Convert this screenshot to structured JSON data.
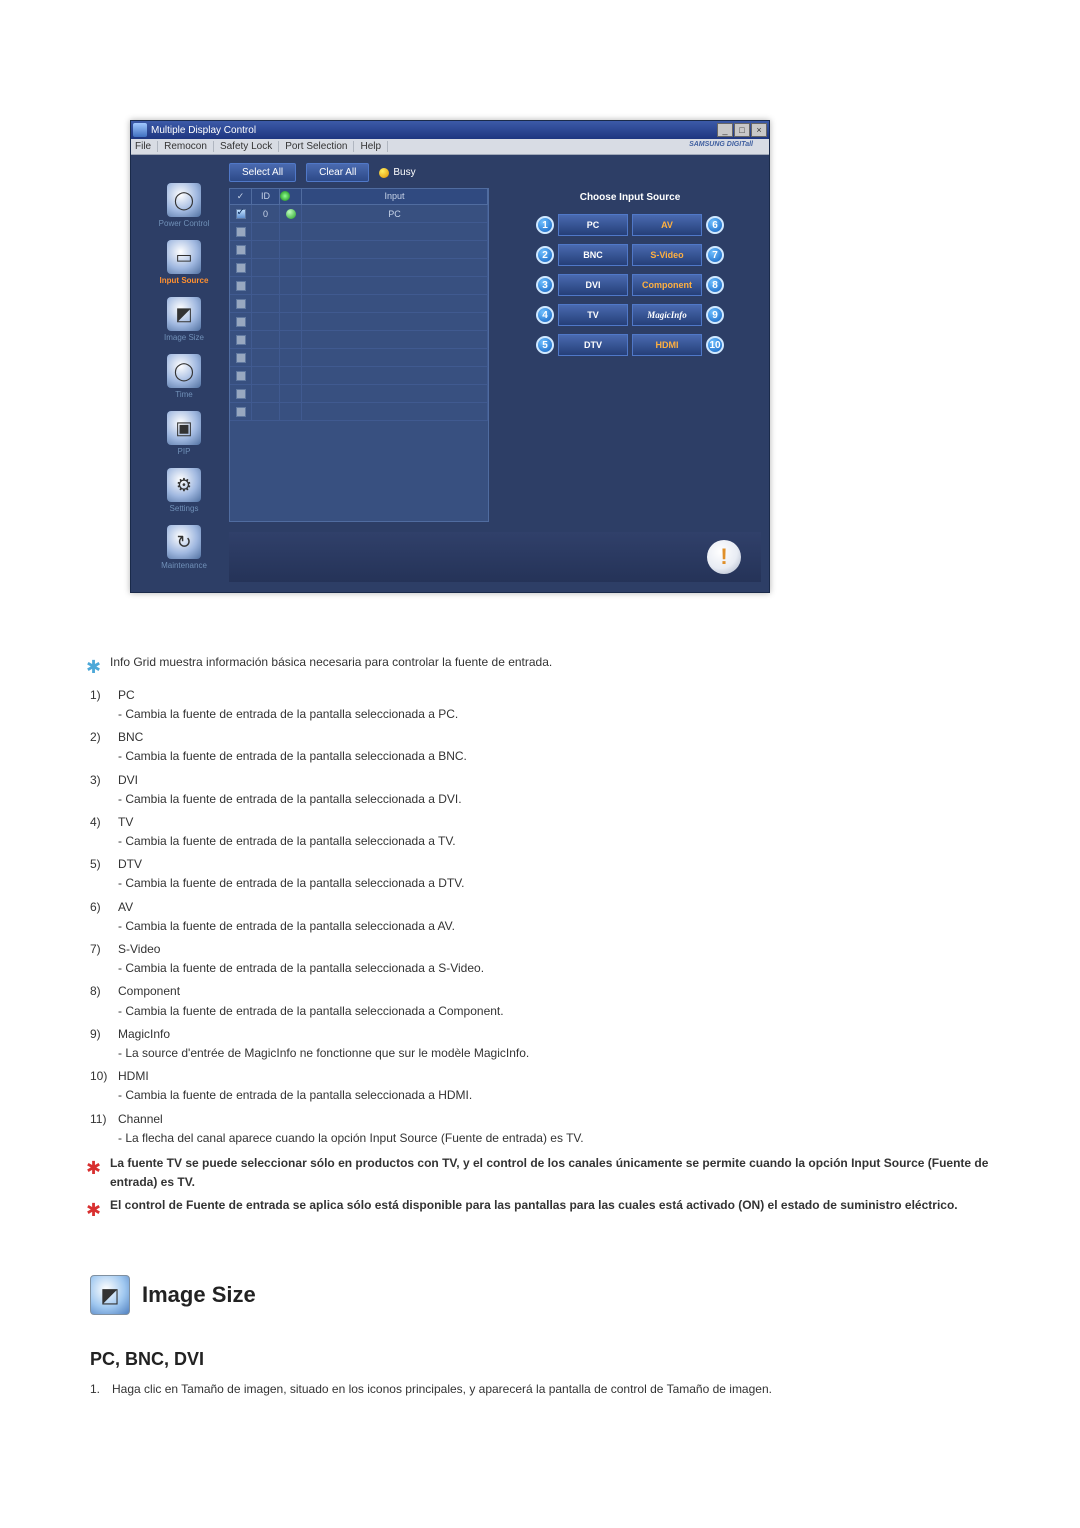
{
  "window": {
    "title": "Multiple Display Control",
    "menus": [
      "File",
      "Remocon",
      "Safety Lock",
      "Port Selection",
      "Help"
    ],
    "brand": "SAMSUNG DIGITall"
  },
  "sidebar": {
    "items": [
      {
        "label": "Power Control",
        "active": false,
        "glyph": "◯"
      },
      {
        "label": "Input Source",
        "active": true,
        "glyph": "▭"
      },
      {
        "label": "Image Size",
        "active": false,
        "glyph": "◩"
      },
      {
        "label": "Time",
        "active": false,
        "glyph": "◯"
      },
      {
        "label": "PIP",
        "active": false,
        "glyph": "▣"
      },
      {
        "label": "Settings",
        "active": false,
        "glyph": "⚙"
      },
      {
        "label": "Maintenance",
        "active": false,
        "glyph": "↻"
      }
    ]
  },
  "topControls": {
    "selectAll": "Select All",
    "clearAll": "Clear All",
    "busy": "Busy"
  },
  "grid": {
    "headers": {
      "chk": "✓",
      "id": "ID",
      "status": "●",
      "input": "Input"
    },
    "firstRow": {
      "id": "0",
      "input": "PC"
    },
    "blankRows": 11
  },
  "inputPanel": {
    "heading": "Choose Input Source",
    "left": [
      {
        "n": "1",
        "label": "PC",
        "cls": "white"
      },
      {
        "n": "2",
        "label": "BNC",
        "cls": "white"
      },
      {
        "n": "3",
        "label": "DVI",
        "cls": "white"
      },
      {
        "n": "4",
        "label": "TV",
        "cls": "white"
      },
      {
        "n": "5",
        "label": "DTV",
        "cls": "white"
      }
    ],
    "right": [
      {
        "n": "6",
        "label": "AV",
        "cls": "orange"
      },
      {
        "n": "7",
        "label": "S-Video",
        "cls": "orange"
      },
      {
        "n": "8",
        "label": "Component",
        "cls": "orange"
      },
      {
        "n": "9",
        "label": "MagicInfo",
        "cls": "magicinfo"
      },
      {
        "n": "10",
        "label": "HDMI",
        "cls": "orange"
      }
    ]
  },
  "doc": {
    "intro": "Info Grid muestra información básica necesaria para controlar la fuente de entrada.",
    "items": [
      {
        "n": "1)",
        "t": "PC",
        "d": "- Cambia la fuente de entrada de la pantalla seleccionada a PC."
      },
      {
        "n": "2)",
        "t": "BNC",
        "d": "- Cambia la fuente de entrada de la pantalla seleccionada a BNC."
      },
      {
        "n": "3)",
        "t": "DVI",
        "d": "- Cambia la fuente de entrada de la pantalla seleccionada a DVI."
      },
      {
        "n": "4)",
        "t": "TV",
        "d": "- Cambia la fuente de entrada de la pantalla seleccionada a TV."
      },
      {
        "n": "5)",
        "t": "DTV",
        "d": "- Cambia la fuente de entrada de la pantalla seleccionada a DTV."
      },
      {
        "n": "6)",
        "t": "AV",
        "d": "- Cambia la fuente de entrada de la pantalla seleccionada a AV."
      },
      {
        "n": "7)",
        "t": "S-Video",
        "d": "- Cambia la fuente de entrada de la pantalla seleccionada a S-Video."
      },
      {
        "n": "8)",
        "t": "Component",
        "d": "- Cambia la fuente de entrada de la pantalla seleccionada a Component."
      },
      {
        "n": "9)",
        "t": "MagicInfo",
        "d": "- La source d'entrée de MagicInfo ne fonctionne que sur le modèle MagicInfo."
      },
      {
        "n": "10)",
        "t": "HDMI",
        "d": "- Cambia la fuente de entrada de la pantalla seleccionada a HDMI."
      },
      {
        "n": "11)",
        "t": "Channel",
        "d": "- La flecha del canal aparece cuando la opción Input Source (Fuente de entrada) es TV."
      }
    ],
    "note1": "La fuente TV se puede seleccionar sólo en productos con TV, y el control de los canales únicamente se permite cuando la opción Input Source (Fuente de entrada) es TV.",
    "note2": "El control de Fuente de entrada se aplica sólo está disponible para las pantallas para las cuales está activado (ON) el estado de suministro eléctrico.",
    "sectionTitle": "Image Size",
    "subheading": "PC, BNC, DVI",
    "para1": "Haga clic en Tamaño de imagen, situado en los iconos principales, y aparecerá la pantalla de control de Tamaño de imagen."
  }
}
